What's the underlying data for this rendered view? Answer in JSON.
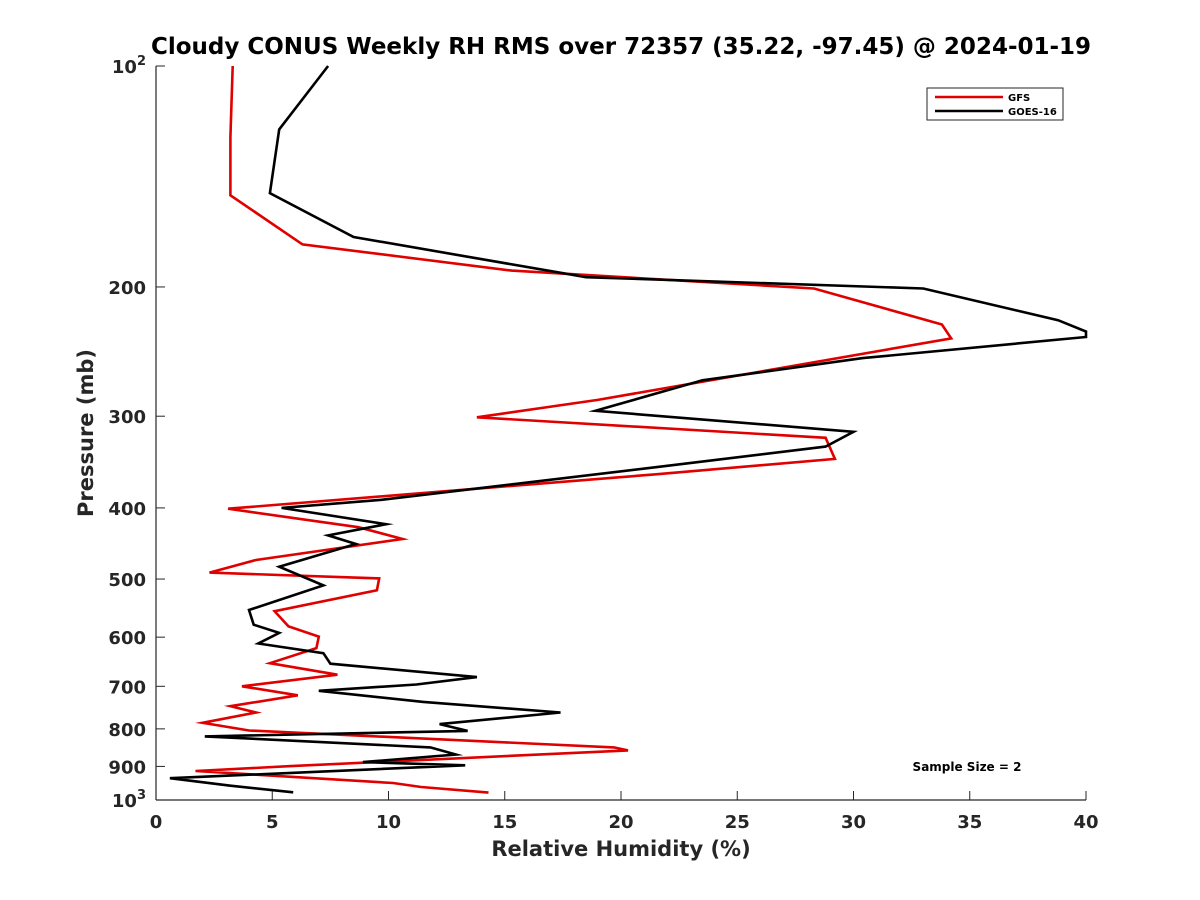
{
  "chart_data": {
    "type": "line",
    "title": "Cloudy CONUS Weekly RH RMS over 72357 (35.22, -97.45) @ 2024-01-19",
    "xlabel": "Relative Humidity (%)",
    "ylabel": "Pressure (mb)",
    "xlim": [
      0,
      40
    ],
    "ylim": [
      100,
      1000
    ],
    "yscale": "log",
    "y_reversed": true,
    "xticks": [
      "0",
      "5",
      "10",
      "15",
      "20",
      "25",
      "30",
      "35",
      "40"
    ],
    "yticks": [
      {
        "value": 100,
        "base": "10",
        "exp": "2"
      },
      {
        "value": 200,
        "label": "200"
      },
      {
        "value": 300,
        "label": "300"
      },
      {
        "value": 400,
        "label": "400"
      },
      {
        "value": 500,
        "label": "500"
      },
      {
        "value": 600,
        "label": "600"
      },
      {
        "value": 700,
        "label": "700"
      },
      {
        "value": 800,
        "label": "800"
      },
      {
        "value": 900,
        "label": "900"
      },
      {
        "value": 1000,
        "base": "10",
        "exp": "3"
      }
    ],
    "grid": false,
    "legend_position": "top-right",
    "annotation": "Sample Size = 2",
    "series": [
      {
        "name": "GFS",
        "color": "#e00000",
        "points": [
          [
            3.3,
            100
          ],
          [
            3.2,
            125
          ],
          [
            3.2,
            150
          ],
          [
            6.3,
            175
          ],
          [
            15.3,
            190
          ],
          [
            28.3,
            201
          ],
          [
            33.8,
            225
          ],
          [
            34.2,
            235
          ],
          [
            19.0,
            285
          ],
          [
            13.8,
            301
          ],
          [
            28.8,
            321
          ],
          [
            29.2,
            343
          ],
          [
            21.5,
            360
          ],
          [
            3.1,
            401
          ],
          [
            8.7,
            425
          ],
          [
            10.6,
            441
          ],
          [
            4.3,
            471
          ],
          [
            2.3,
            490
          ],
          [
            9.6,
            499
          ],
          [
            9.5,
            518
          ],
          [
            5.1,
            553
          ],
          [
            5.7,
            580
          ],
          [
            7.0,
            599
          ],
          [
            6.9,
            621
          ],
          [
            4.9,
            651
          ],
          [
            7.8,
            675
          ],
          [
            3.7,
            700
          ],
          [
            6.1,
            720
          ],
          [
            3.2,
            745
          ],
          [
            4.3,
            760
          ],
          [
            2.0,
            785
          ],
          [
            4.0,
            804
          ],
          [
            19.7,
            848
          ],
          [
            20.3,
            856
          ],
          [
            5.8,
            899
          ],
          [
            1.7,
            913
          ],
          [
            10.2,
            948
          ],
          [
            11.4,
            960
          ],
          [
            14.3,
            977
          ]
        ]
      },
      {
        "name": "GOES-16",
        "color": "#000000",
        "points": [
          [
            7.4,
            100
          ],
          [
            5.3,
            122
          ],
          [
            4.9,
            149
          ],
          [
            8.5,
            171
          ],
          [
            18.5,
            194
          ],
          [
            33.0,
            201
          ],
          [
            38.8,
            222
          ],
          [
            40.0,
            230
          ],
          [
            40.0,
            234
          ],
          [
            30.4,
            250
          ],
          [
            23.5,
            268
          ],
          [
            18.9,
            295
          ],
          [
            30.0,
            315
          ],
          [
            28.8,
            330
          ],
          [
            21.5,
            352
          ],
          [
            9.7,
            390
          ],
          [
            5.4,
            400
          ],
          [
            9.9,
            421
          ],
          [
            7.4,
            436
          ],
          [
            8.6,
            448
          ],
          [
            5.3,
            481
          ],
          [
            7.2,
            510
          ],
          [
            4.0,
            551
          ],
          [
            4.2,
            577
          ],
          [
            5.3,
            592
          ],
          [
            4.4,
            612
          ],
          [
            7.2,
            631
          ],
          [
            7.5,
            652
          ],
          [
            13.8,
            680
          ],
          [
            11.2,
            696
          ],
          [
            7.0,
            710
          ],
          [
            11.5,
            735
          ],
          [
            17.4,
            760
          ],
          [
            12.2,
            788
          ],
          [
            13.4,
            805
          ],
          [
            2.1,
            819
          ],
          [
            11.8,
            848
          ],
          [
            12.9,
            867
          ],
          [
            8.9,
            888
          ],
          [
            13.3,
            897
          ],
          [
            0.6,
            934
          ],
          [
            3.2,
            956
          ],
          [
            5.9,
            976
          ]
        ]
      }
    ]
  }
}
